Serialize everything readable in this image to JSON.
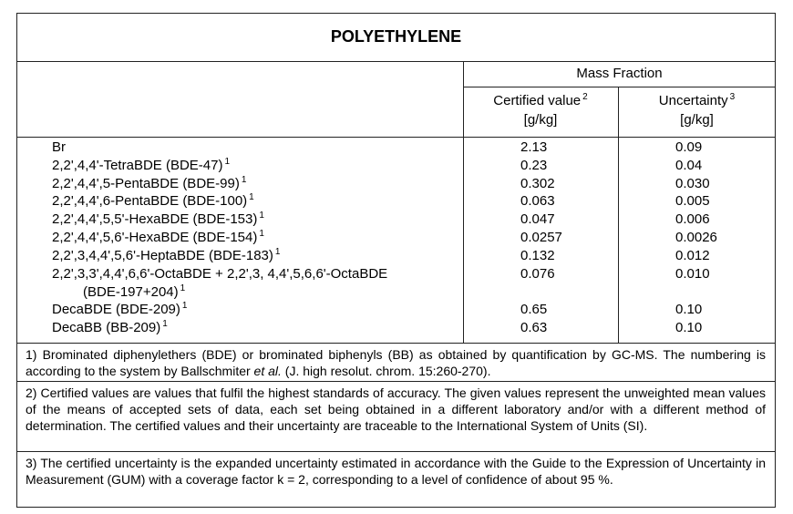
{
  "title": "POLYETHYLENE",
  "header": {
    "group": "Mass Fraction",
    "columns": [
      {
        "label": "Certified value",
        "note": "2",
        "unit": "[g/kg]"
      },
      {
        "label": "Uncertainty",
        "note": "3",
        "unit": "[g/kg]"
      }
    ]
  },
  "rows": [
    {
      "name": "Br",
      "certified": "2.13",
      "uncertainty": "0.09"
    },
    {
      "name": "2,2',4,4'-TetraBDE (BDE-47)",
      "note": "1",
      "certified": "0.23",
      "uncertainty": "0.04"
    },
    {
      "name": "2,2',4,4',5-PentaBDE (BDE-99)",
      "note": "1",
      "certified": "0.302",
      "uncertainty": "0.030"
    },
    {
      "name": "2,2',4,4',6-PentaBDE (BDE-100)",
      "note": "1",
      "certified": "0.063",
      "uncertainty": "0.005"
    },
    {
      "name": "2,2',4,4',5,5'-HexaBDE (BDE-153)",
      "note": "1",
      "certified": "0.047",
      "uncertainty": "0.006"
    },
    {
      "name": "2,2',4,4',5,6'-HexaBDE (BDE-154)",
      "note": "1",
      "certified": "0.0257",
      "uncertainty": "0.0026"
    },
    {
      "name": "2,2',3,4,4',5,6'-HeptaBDE (BDE-183)",
      "note": "1",
      "certified": "0.132",
      "uncertainty": "0.012"
    },
    {
      "name": "2,2',3,3',4,4',6,6'-OctaBDE + 2,2',3, 4,4',5,6,6'-OctaBDE",
      "name_cont": "(BDE-197+204)",
      "note": "1",
      "certified": "0.076",
      "uncertainty": "0.010"
    },
    {
      "name": "DecaBDE (BDE-209)",
      "note": "1",
      "certified": "0.65",
      "uncertainty": "0.10"
    },
    {
      "name": "DecaBB (BB-209)",
      "note": "1",
      "certified": "0.63",
      "uncertainty": "0.10"
    }
  ],
  "footnotes": [
    {
      "text": "1) Brominated diphenylethers (BDE) or brominated biphenyls (BB) as obtained by quantification by GC-MS. The numbering is according to the system by Ballschmiter ",
      "italic": "et al.",
      "text_end": " (J. high resolut. chrom. 15:260-270)."
    },
    {
      "text": "2) Certified values are values that fulfil the highest standards of accuracy. The given values represent the unweighted mean values of the means of accepted sets of data, each set being obtained in a different laboratory and/or with a different method of determination. The certified values and their uncertainty are traceable to the International System of Units (SI)."
    },
    {
      "text": "3) The certified uncertainty is the expanded uncertainty estimated in accordance with the Guide to the Expression of Uncertainty in Measurement (GUM) with a coverage factor k = 2, corresponding to a level of confidence of about 95 %."
    }
  ]
}
